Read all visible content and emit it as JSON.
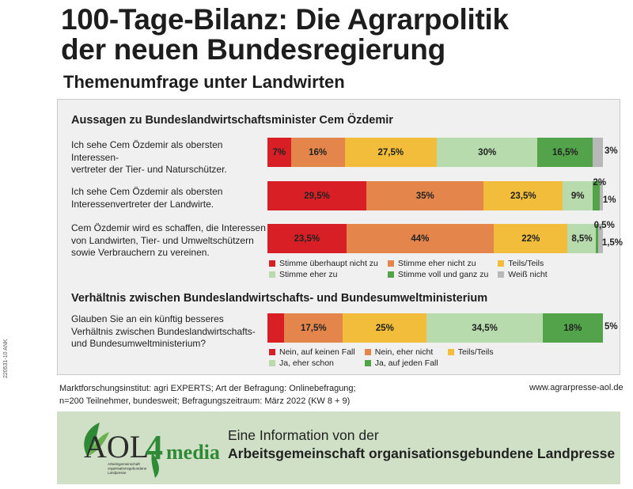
{
  "side_code": "220531-10 ANK",
  "title_line1": "100-Tage-Bilanz: Die Agrarpolitik",
  "title_line2": "der neuen Bundesregierung",
  "subtitle": "Themenumfrage unter Landwirten",
  "colors": {
    "c1": "#d91f26",
    "c2": "#e4864c",
    "c3": "#f1bd3b",
    "c4": "#b8dbad",
    "c5": "#52a34a",
    "c6": "#b8b8b8"
  },
  "chart_data": [
    {
      "type": "bar",
      "orientation": "horizontal-stacked",
      "title": "Aussagen zu Bundeslandwirtschaftsminister Cem Özdemir",
      "categories": [
        "Ich sehe Cem Özdemir als obersten Interessen-\nvertreter der Tier- und Naturschützer.",
        "Ich sehe Cem Özdemir als obersten\nInteressenvertreter der Landwirte.",
        "Cem Özdemir wird es schaffen, die Interessen\nvon Landwirten, Tier- und Umweltschützern\nsowie Verbrauchern zu vereinen."
      ],
      "series": [
        {
          "name": "Stimme überhaupt nicht zu",
          "values": [
            7,
            29.5,
            23.5
          ],
          "labels": [
            "7%",
            "29,5%",
            "23,5%"
          ]
        },
        {
          "name": "Stimme eher nicht zu",
          "values": [
            16,
            35,
            44
          ],
          "labels": [
            "16%",
            "35%",
            "44%"
          ]
        },
        {
          "name": "Teils/Teils",
          "values": [
            27.5,
            23.5,
            22
          ],
          "labels": [
            "27,5%",
            "23,5%",
            "22%"
          ]
        },
        {
          "name": "Stimme eher zu",
          "values": [
            30,
            9,
            8.5
          ],
          "labels": [
            "30%",
            "9%",
            "8,5%"
          ]
        },
        {
          "name": "Stimme voll und ganz zu",
          "values": [
            16.5,
            2,
            0.5
          ],
          "labels": [
            "16,5%",
            "2%",
            "0,5%"
          ]
        },
        {
          "name": "Weiß nicht",
          "values": [
            3,
            1,
            1.5
          ],
          "labels": [
            "3%",
            "1%",
            "1,5%"
          ]
        }
      ]
    },
    {
      "type": "bar",
      "orientation": "horizontal-stacked",
      "title": "Verhältnis zwischen Bundeslandwirtschafts- und Bundesumweltministerium",
      "categories": [
        "Glauben Sie an ein künftig besseres\nVerhältnis zwischen Bundeslandwirtschafts-\nund Bundesumweltministerium?"
      ],
      "series": [
        {
          "name": "Nein, auf keinen Fall",
          "values": [
            5
          ],
          "labels": [
            "5%"
          ]
        },
        {
          "name": "Nein, eher nicht",
          "values": [
            17.5
          ],
          "labels": [
            "17,5%"
          ]
        },
        {
          "name": "Teils/Teils",
          "values": [
            25
          ],
          "labels": [
            "25%"
          ]
        },
        {
          "name": "Ja, eher schon",
          "values": [
            34.5
          ],
          "labels": [
            "34,5%"
          ]
        },
        {
          "name": "Ja, auf jeden Fall",
          "values": [
            18
          ],
          "labels": [
            "18%"
          ]
        }
      ]
    }
  ],
  "source_line1": "Marktforschungsinstitut: agri EXPERTS; Art der Befragung: Onlinebefragung;",
  "source_line2": "n=200 Teilnehmer, bundesweit; Befragungszeitraum: März 2022 (KW 8 + 9)",
  "url": "www.agrarpresse-aol.de",
  "logo_text": "AOL",
  "logo_digit": "4",
  "logo_word": "media",
  "logo_sub": "Arbeitsgemeinschaft\norganisationsgebundene\nLandpresse",
  "footer_line1": "Eine Information von der",
  "footer_line2": "Arbeitsgemeinschaft organisationsgebundene Landpresse"
}
